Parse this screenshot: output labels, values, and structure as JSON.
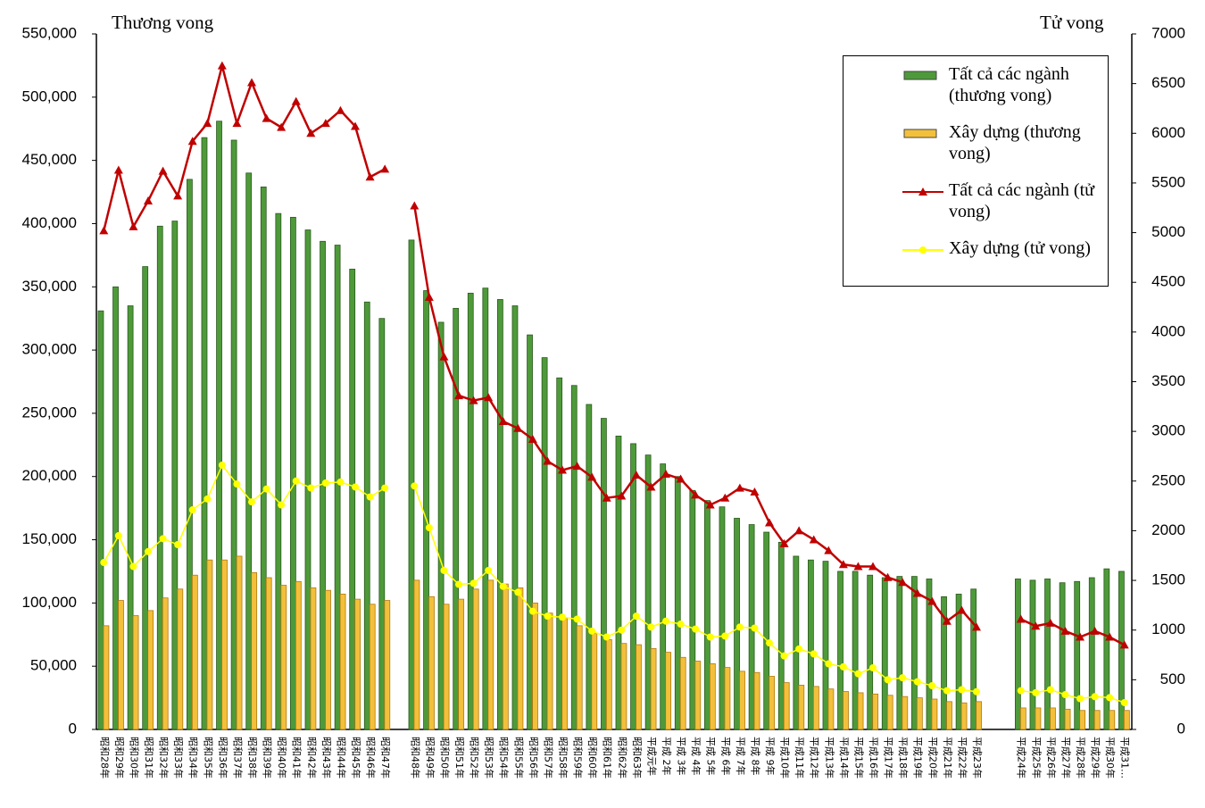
{
  "chart_data": {
    "type": "bar",
    "y_label": "Thương vong",
    "y2_label": "Tử vong",
    "categories": [
      "昭和28年",
      "昭和29年",
      "昭和30年",
      "昭和31年",
      "昭和32年",
      "昭和33年",
      "昭和34年",
      "昭和35年",
      "昭和36年",
      "昭和37年",
      "昭和38年",
      "昭和39年",
      "昭和40年",
      "昭和41年",
      "昭和42年",
      "昭和43年",
      "昭和44年",
      "昭和45年",
      "昭和46年",
      "昭和47年",
      null,
      "昭和48年",
      "昭和49年",
      "昭和50年",
      "昭和51年",
      "昭和52年",
      "昭和53年",
      "昭和54年",
      "昭和55年",
      "昭和56年",
      "昭和57年",
      "昭和58年",
      "昭和59年",
      "昭和60年",
      "昭和61年",
      "昭和62年",
      "昭和63年",
      "平成元年",
      "平成 2年",
      "平成 3年",
      "平成 4年",
      "平成 5年",
      "平成 6年",
      "平成 7年",
      "平成 8年",
      "平成 9年",
      "平成10年",
      "平成11年",
      "平成12年",
      "平成13年",
      "平成14年",
      "平成15年",
      "平成16年",
      "平成17年",
      "平成18年",
      "平成19年",
      "平成20年",
      "平成21年",
      "平成22年",
      "平成23年",
      null,
      null,
      "平成24年",
      "平成25年",
      "平成26年",
      "平成27年",
      "平成28年",
      "平成29年",
      "平成30年",
      "平成31…"
    ],
    "series": [
      {
        "name": "Tất cả các ngành (thương vong)",
        "type": "bar",
        "color": "#4e9a3a",
        "values": [
          331000,
          350000,
          335000,
          366000,
          398000,
          402000,
          435000,
          468000,
          481000,
          466000,
          440000,
          429000,
          408000,
          405000,
          395000,
          386000,
          383000,
          364000,
          338000,
          325000,
          null,
          387000,
          347000,
          322000,
          333000,
          345000,
          349000,
          340000,
          335000,
          312000,
          294000,
          278000,
          272000,
          257000,
          246000,
          232000,
          226000,
          217000,
          210000,
          200000,
          189000,
          181000,
          176000,
          167000,
          162000,
          156000,
          148000,
          137000,
          134000,
          133000,
          125000,
          125000,
          122000,
          120000,
          121000,
          121000,
          119000,
          105000,
          107000,
          111000,
          null,
          null,
          119000,
          118000,
          119000,
          116000,
          117000,
          120000,
          127000,
          125000
        ]
      },
      {
        "name": "Xây dựng (thương vong)",
        "type": "bar",
        "color": "#f3c03c",
        "values": [
          82000,
          102000,
          90000,
          94000,
          104000,
          111000,
          122000,
          134000,
          134000,
          137000,
          124000,
          120000,
          114000,
          117000,
          112000,
          110000,
          107000,
          103000,
          99000,
          102000,
          null,
          118000,
          105000,
          99000,
          103000,
          111000,
          118000,
          115000,
          112000,
          100000,
          92000,
          88000,
          82000,
          76000,
          71000,
          68000,
          67000,
          64000,
          61000,
          57000,
          54000,
          52000,
          49000,
          46000,
          45000,
          42000,
          37000,
          35000,
          34000,
          32000,
          30000,
          29000,
          28000,
          27000,
          26000,
          25000,
          24000,
          22000,
          21000,
          22000,
          null,
          null,
          17000,
          17000,
          17000,
          16000,
          15000,
          15000,
          15000,
          15000
        ]
      },
      {
        "name": "Tất cả các ngành (tử vong)",
        "type": "line",
        "axis": "y2",
        "color": "#c00000",
        "values": [
          5020,
          5630,
          5060,
          5320,
          5620,
          5370,
          5920,
          6100,
          6680,
          6100,
          6510,
          6150,
          6060,
          6320,
          6000,
          6100,
          6230,
          6070,
          5560,
          5640,
          null,
          5270,
          4350,
          3750,
          3360,
          3310,
          3340,
          3100,
          3030,
          2920,
          2700,
          2610,
          2650,
          2540,
          2330,
          2350,
          2560,
          2440,
          2570,
          2520,
          2360,
          2260,
          2330,
          2430,
          2390,
          2080,
          1870,
          2000,
          1910,
          1800,
          1660,
          1640,
          1640,
          1530,
          1480,
          1370,
          1290,
          1090,
          1200,
          1030,
          null,
          null,
          1110,
          1040,
          1070,
          990,
          930,
          990,
          930,
          850
        ]
      },
      {
        "name": "Xây dựng (tử vong)",
        "type": "line",
        "axis": "y2",
        "color": "#ffff00",
        "values": [
          1680,
          1950,
          1640,
          1790,
          1920,
          1860,
          2210,
          2320,
          2660,
          2470,
          2290,
          2420,
          2260,
          2500,
          2430,
          2480,
          2490,
          2440,
          2340,
          2430,
          null,
          2450,
          2030,
          1600,
          1460,
          1470,
          1600,
          1440,
          1380,
          1190,
          1140,
          1130,
          1110,
          990,
          930,
          1000,
          1140,
          1030,
          1090,
          1060,
          1010,
          930,
          940,
          1030,
          1020,
          870,
          740,
          810,
          760,
          660,
          630,
          560,
          620,
          500,
          520,
          480,
          440,
          390,
          400,
          380,
          null,
          null,
          390,
          370,
          400,
          350,
          310,
          330,
          320,
          270
        ]
      }
    ],
    "ylim": [
      0,
      550000
    ],
    "yticks": [
      0,
      {
        "value": 50000,
        "label": "50,000"
      },
      {
        "value": 100000,
        "label": "100,000"
      },
      {
        "value": 150000,
        "label": "150,000"
      },
      {
        "value": 200000,
        "label": "200,000"
      },
      {
        "value": 250000,
        "label": "250,000"
      },
      {
        "value": 300000,
        "label": "300,000"
      },
      {
        "value": 350000,
        "label": "350,000"
      },
      {
        "value": 400000,
        "label": "400,000"
      },
      {
        "value": 450000,
        "label": "450,000"
      },
      {
        "value": 500000,
        "label": "500,000"
      },
      {
        "value": 550000,
        "label": "550,000"
      }
    ],
    "y2lim": [
      0,
      7000
    ],
    "y2ticks": [
      0,
      500,
      1000,
      1500,
      2000,
      2500,
      3000,
      3500,
      4000,
      4500,
      5000,
      5500,
      6000,
      6500,
      7000
    ],
    "legend": "top-right"
  }
}
